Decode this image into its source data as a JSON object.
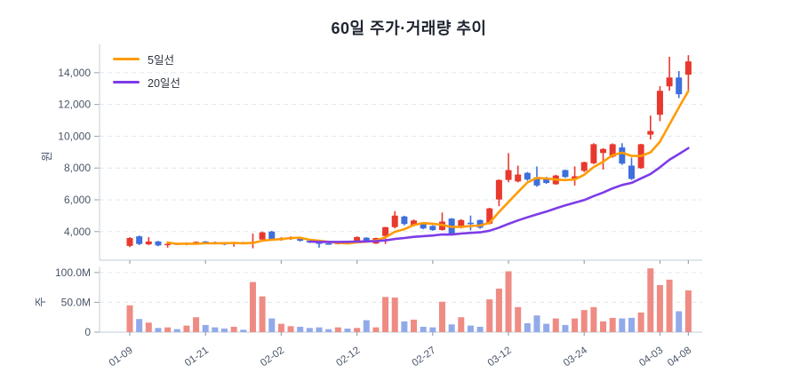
{
  "title": "60일 주가·거래량 추이",
  "legend": [
    {
      "label": "5일선",
      "color": "#ff9b05",
      "window": 5
    },
    {
      "label": "20일선",
      "color": "#7d3ce8",
      "window": 20
    }
  ],
  "chart_data": {
    "type": "candlestick+volume",
    "title": "60일 주가·거래량 추이",
    "price_axis": {
      "label": "원",
      "tick_values": [
        4000,
        6000,
        8000,
        10000,
        12000,
        14000
      ],
      "tick_labels": [
        "4,000",
        "6,000",
        "8,000",
        "10,000",
        "12,000",
        "14,000"
      ],
      "ylim": [
        2200,
        15500
      ],
      "grid": "dashed"
    },
    "volume_axis": {
      "label": "주",
      "tick_values": [
        0,
        50,
        100
      ],
      "tick_labels": [
        "0",
        "50.0M",
        "100.0M"
      ],
      "ylim": [
        0,
        105
      ],
      "unit_millions": true
    },
    "x_ticks": [
      {
        "index": 0,
        "label": "01-09"
      },
      {
        "index": 8,
        "label": "01-21"
      },
      {
        "index": 16,
        "label": "02-02"
      },
      {
        "index": 24,
        "label": "02-12"
      },
      {
        "index": 32,
        "label": "02-27"
      },
      {
        "index": 40,
        "label": "03-12"
      },
      {
        "index": 48,
        "label": "03-24"
      },
      {
        "index": 56,
        "label": "04-03"
      },
      {
        "index": 59,
        "label": "04-08"
      }
    ],
    "colors": {
      "up": "#e8392e",
      "down": "#3e6fdc",
      "vol_up": "#ee8c84",
      "vol_down": "#92aae9",
      "axis": "#c3ccd6",
      "tick": "#97a3b2",
      "grid": "#e1e7ee",
      "text": "#4a5568"
    },
    "candles_ohlc": [
      [
        3100,
        3650,
        3020,
        3600
      ],
      [
        3700,
        3750,
        3150,
        3220
      ],
      [
        3200,
        3650,
        3150,
        3380
      ],
      [
        3380,
        3420,
        3080,
        3130
      ],
      [
        3150,
        3260,
        2990,
        3230
      ],
      [
        3250,
        3300,
        3150,
        3190
      ],
      [
        3190,
        3320,
        3140,
        3280
      ],
      [
        3250,
        3380,
        3200,
        3350
      ],
      [
        3380,
        3400,
        3220,
        3260
      ],
      [
        3340,
        3370,
        3200,
        3240
      ],
      [
        3280,
        3320,
        3140,
        3230
      ],
      [
        3230,
        3360,
        3050,
        3330
      ],
      [
        3320,
        3360,
        3230,
        3280
      ],
      [
        3290,
        3880,
        2950,
        3350
      ],
      [
        3500,
        4000,
        3450,
        3950
      ],
      [
        4000,
        4050,
        3480,
        3510
      ],
      [
        3480,
        3650,
        3420,
        3560
      ],
      [
        3540,
        3700,
        3480,
        3620
      ],
      [
        3600,
        3650,
        3380,
        3420
      ],
      [
        3420,
        3450,
        3280,
        3310
      ],
      [
        3330,
        3380,
        2990,
        3230
      ],
      [
        3260,
        3300,
        3180,
        3210
      ],
      [
        3220,
        3330,
        3190,
        3300
      ],
      [
        3300,
        3340,
        3200,
        3240
      ],
      [
        3380,
        3700,
        3350,
        3660
      ],
      [
        3620,
        3650,
        3350,
        3390
      ],
      [
        3250,
        3620,
        3220,
        3600
      ],
      [
        3720,
        4300,
        3220,
        4280
      ],
      [
        4280,
        5290,
        4200,
        5010
      ],
      [
        4950,
        5000,
        4400,
        4480
      ],
      [
        4380,
        4760,
        4330,
        4700
      ],
      [
        4540,
        4580,
        4150,
        4200
      ],
      [
        4360,
        4400,
        4050,
        4090
      ],
      [
        4100,
        5200,
        4060,
        4630
      ],
      [
        4820,
        4850,
        3790,
        3850
      ],
      [
        4260,
        4780,
        4200,
        4730
      ],
      [
        4560,
        5010,
        4080,
        4470
      ],
      [
        4730,
        4760,
        4180,
        4250
      ],
      [
        4500,
        5500,
        4450,
        5460
      ],
      [
        6020,
        7280,
        5600,
        7250
      ],
      [
        7250,
        8940,
        7100,
        7870
      ],
      [
        7150,
        8150,
        7100,
        7590
      ],
      [
        7700,
        7750,
        7200,
        7280
      ],
      [
        7420,
        8100,
        6820,
        6900
      ],
      [
        7380,
        7450,
        7000,
        7060
      ],
      [
        6980,
        7580,
        6950,
        7530
      ],
      [
        7870,
        7900,
        7380,
        7430
      ],
      [
        7350,
        8100,
        6900,
        7480
      ],
      [
        7820,
        8400,
        7750,
        8370
      ],
      [
        8300,
        9560,
        8250,
        9500
      ],
      [
        8950,
        9250,
        7900,
        9200
      ],
      [
        8720,
        9550,
        8650,
        9500
      ],
      [
        9300,
        9560,
        8200,
        8280
      ],
      [
        8150,
        8650,
        7250,
        7310
      ],
      [
        7990,
        9520,
        7950,
        9500
      ],
      [
        10100,
        11300,
        9800,
        10330
      ],
      [
        11350,
        13150,
        10950,
        12860
      ],
      [
        13140,
        15000,
        12860,
        13700
      ],
      [
        13700,
        14100,
        12400,
        12640
      ],
      [
        13870,
        15100,
        12860,
        14710
      ]
    ],
    "volumes_millions": [
      45,
      22,
      16,
      7,
      8,
      5,
      11,
      25,
      12,
      8,
      6,
      9,
      4,
      84,
      60,
      23,
      14,
      10,
      9,
      7,
      8,
      5,
      8,
      6,
      7,
      20,
      8,
      59,
      58,
      18,
      21,
      9,
      8,
      51,
      13,
      25,
      11,
      9,
      55,
      73,
      102,
      42,
      15,
      28,
      14,
      23,
      12,
      23,
      37,
      42,
      18,
      24,
      23,
      24,
      33,
      107,
      79,
      88,
      35,
      70
    ]
  }
}
